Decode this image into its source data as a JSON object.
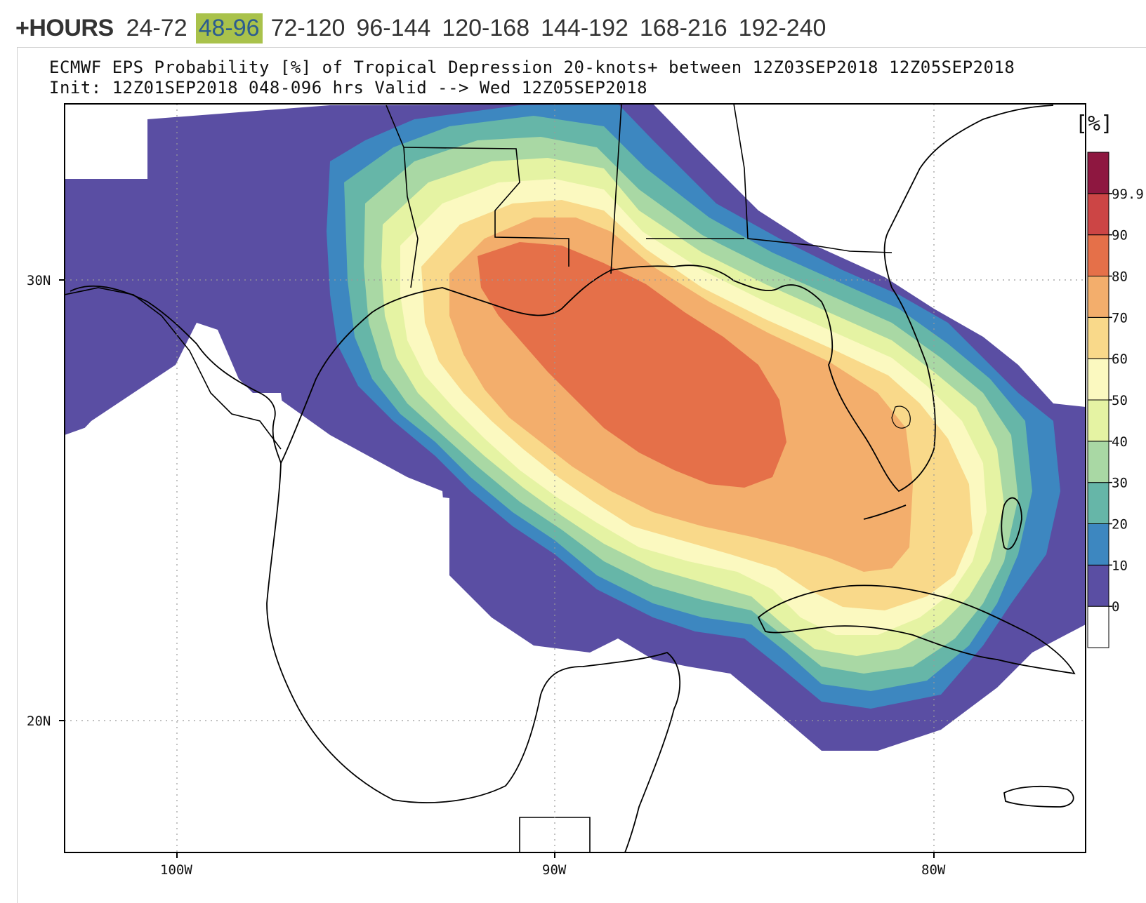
{
  "hours_selector": {
    "label": "+HOURS",
    "ranges": [
      "24-72",
      "48-96",
      "72-120",
      "96-144",
      "120-168",
      "144-192",
      "168-216",
      "192-240"
    ],
    "active": "48-96"
  },
  "map": {
    "title": "ECMWF EPS Probability [%] of Tropical Depression 20-knots+ between 12Z03SEP2018 12Z05SEP2018",
    "subtitle": "Init: 12Z01SEP2018 048-096 hrs Valid --> Wed 12Z05SEP2018",
    "lat_labels": [
      "30N",
      "20N"
    ],
    "lon_labels": [
      "100W",
      "90W",
      "80W"
    ],
    "colorbar": {
      "unit": "[%]",
      "levels": [
        "0",
        "10",
        "20",
        "30",
        "40",
        "50",
        "60",
        "70",
        "80",
        "90",
        "99.9"
      ],
      "colors": [
        "#ffffff",
        "#5a4ea3",
        "#3d87c0",
        "#66b6a8",
        "#a9d8a4",
        "#e5f3a3",
        "#fbf9c0",
        "#f9d98a",
        "#f3ae6c",
        "#e57049",
        "#cc4545",
        "#8e1740"
      ]
    }
  }
}
